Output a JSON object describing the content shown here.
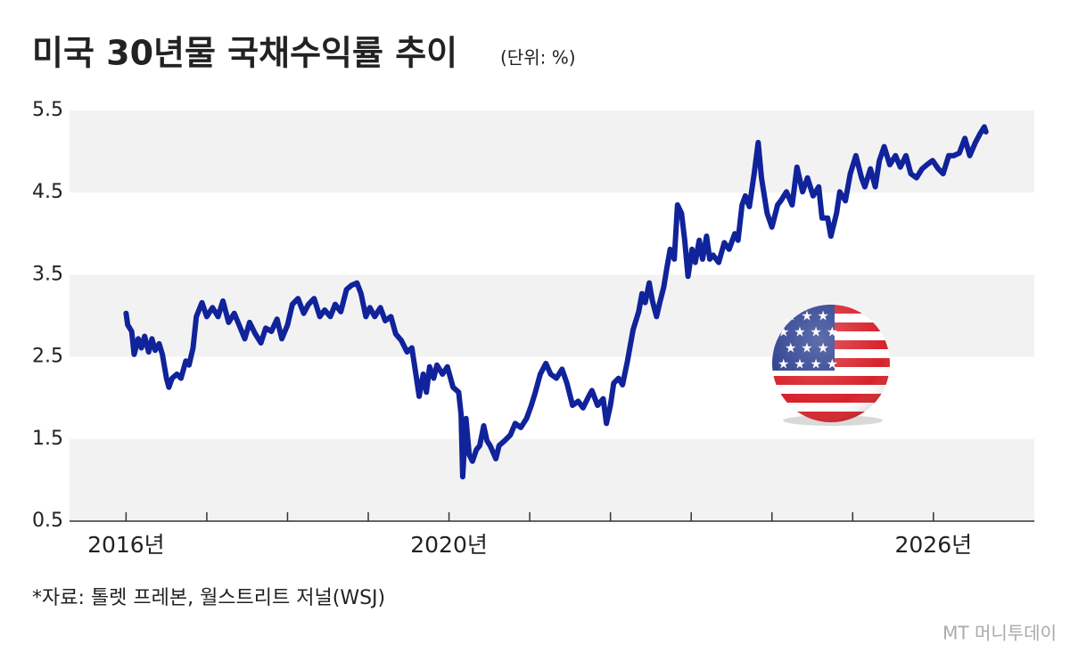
{
  "chart_data": {
    "type": "line",
    "title": "미국 30년물 국채수익률 추이",
    "subtitle": "(단위: %)",
    "source": "*자료: 톨렛 프레본, 월스트리트 저널(WSJ)",
    "watermark": "MT 머니투데이",
    "color": "#10239a",
    "x": [
      2016.0,
      2016.02,
      2016.07,
      2016.1,
      2016.15,
      2016.19,
      2016.23,
      2016.28,
      2016.32,
      2016.36,
      2016.41,
      2016.45,
      2016.5,
      2016.53,
      2016.57,
      2016.63,
      2016.68,
      2016.74,
      2016.78,
      2016.83,
      2016.87,
      2016.94,
      2017.0,
      2017.07,
      2017.14,
      2017.2,
      2017.27,
      2017.34,
      2017.4,
      2017.47,
      2017.53,
      2017.6,
      2017.67,
      2017.73,
      2017.8,
      2017.87,
      2017.93,
      2018.0,
      2018.06,
      2018.13,
      2018.2,
      2018.26,
      2018.33,
      2018.4,
      2018.46,
      2018.53,
      2018.59,
      2018.66,
      2018.73,
      2018.79,
      2018.86,
      2018.91,
      2018.97,
      2019.02,
      2019.08,
      2019.15,
      2019.21,
      2019.28,
      2019.34,
      2019.41,
      2019.48,
      2019.54,
      2019.59,
      2019.63,
      2019.68,
      2019.72,
      2019.76,
      2019.81,
      2019.85,
      2019.92,
      2019.98,
      2020.05,
      2020.12,
      2020.15,
      2020.17,
      2020.21,
      2020.25,
      2020.29,
      2020.34,
      2020.38,
      2020.43,
      2020.47,
      2020.51,
      2020.58,
      2020.62,
      2020.69,
      2020.76,
      2020.82,
      2020.89,
      2020.96,
      2021.02,
      2021.07,
      2021.13,
      2021.2,
      2021.26,
      2021.33,
      2021.4,
      2021.46,
      2021.53,
      2021.6,
      2021.66,
      2021.73,
      2021.77,
      2021.84,
      2021.91,
      2021.95,
      2022.0,
      2022.04,
      2022.1,
      2022.15,
      2022.21,
      2022.28,
      2022.35,
      2022.39,
      2022.43,
      2022.48,
      2022.52,
      2022.57,
      2022.61,
      2022.66,
      2022.7,
      2022.74,
      2022.79,
      2022.83,
      2022.88,
      2022.92,
      2022.96,
      2023.01,
      2023.05,
      2023.1,
      2023.14,
      2023.19,
      2023.23,
      2023.27,
      2023.34,
      2023.41,
      2023.47,
      2023.54,
      2023.58,
      2023.63,
      2023.67,
      2023.72,
      2023.78,
      2023.83,
      2023.87,
      2023.94,
      2024.0,
      2024.07,
      2024.11,
      2024.18,
      2024.25,
      2024.31,
      2024.38,
      2024.44,
      2024.51,
      2024.58,
      2024.62,
      2024.69,
      2024.73,
      2024.8,
      2024.84,
      2024.91,
      2024.97,
      2025.04,
      2025.11,
      2025.15,
      2025.22,
      2025.28,
      2025.33,
      2025.39,
      2025.46,
      2025.53,
      2025.59,
      2025.66,
      2025.72,
      2025.79,
      2025.86,
      2025.92,
      2025.99,
      2026.06,
      2026.12,
      2026.19,
      2026.25,
      2026.32,
      2026.39,
      2026.45,
      2026.52,
      2026.58,
      2026.63,
      2026.65
    ],
    "values": [
      3.03,
      2.89,
      2.81,
      2.53,
      2.72,
      2.61,
      2.75,
      2.56,
      2.72,
      2.58,
      2.66,
      2.53,
      2.24,
      2.13,
      2.24,
      2.29,
      2.24,
      2.45,
      2.4,
      2.61,
      2.99,
      3.16,
      2.99,
      3.1,
      2.99,
      3.18,
      2.92,
      3.03,
      2.89,
      2.72,
      2.92,
      2.78,
      2.67,
      2.85,
      2.81,
      2.96,
      2.72,
      2.89,
      3.14,
      3.21,
      3.03,
      3.14,
      3.21,
      2.99,
      3.07,
      2.99,
      3.14,
      3.05,
      3.32,
      3.37,
      3.4,
      3.27,
      2.99,
      3.1,
      2.99,
      3.1,
      2.94,
      2.99,
      2.78,
      2.7,
      2.56,
      2.61,
      2.29,
      2.02,
      2.29,
      2.07,
      2.38,
      2.24,
      2.4,
      2.29,
      2.38,
      2.13,
      2.07,
      1.8,
      1.04,
      1.75,
      1.31,
      1.23,
      1.37,
      1.42,
      1.66,
      1.48,
      1.42,
      1.26,
      1.42,
      1.48,
      1.55,
      1.69,
      1.64,
      1.75,
      1.91,
      2.07,
      2.29,
      2.42,
      2.29,
      2.24,
      2.35,
      2.18,
      1.91,
      1.96,
      1.88,
      2.02,
      2.09,
      1.91,
      1.99,
      1.69,
      1.91,
      2.18,
      2.24,
      2.16,
      2.45,
      2.83,
      3.05,
      3.27,
      3.16,
      3.4,
      3.18,
      2.99,
      3.16,
      3.35,
      3.59,
      3.81,
      3.69,
      4.35,
      4.25,
      3.92,
      3.48,
      3.81,
      3.65,
      3.92,
      3.69,
      3.97,
      3.69,
      3.74,
      3.65,
      3.89,
      3.81,
      4.0,
      3.92,
      4.35,
      4.46,
      4.33,
      4.73,
      5.11,
      4.68,
      4.25,
      4.08,
      4.35,
      4.4,
      4.51,
      4.35,
      4.81,
      4.51,
      4.68,
      4.46,
      4.57,
      4.19,
      4.19,
      3.97,
      4.25,
      4.51,
      4.4,
      4.73,
      4.95,
      4.68,
      4.57,
      4.79,
      4.57,
      4.89,
      5.06,
      4.84,
      4.95,
      4.81,
      4.95,
      4.73,
      4.68,
      4.79,
      4.84,
      4.89,
      4.79,
      4.73,
      4.95,
      4.95,
      4.98,
      5.16,
      4.95,
      5.11,
      5.22,
      5.3,
      5.24
    ],
    "xlim": [
      2015.3,
      2027.25
    ],
    "xticks": [
      {
        "value": 2016,
        "label": "2016년"
      },
      2017,
      2018,
      2019,
      {
        "value": 2020,
        "label": "2020년"
      },
      2021,
      2022,
      2023,
      2024,
      2025,
      {
        "value": 2026,
        "label": "2026년"
      }
    ],
    "ylim": [
      0.5,
      5.5
    ],
    "yticks": [
      0.5,
      1.5,
      2.5,
      3.5,
      4.5,
      5.5
    ],
    "bands": true
  }
}
